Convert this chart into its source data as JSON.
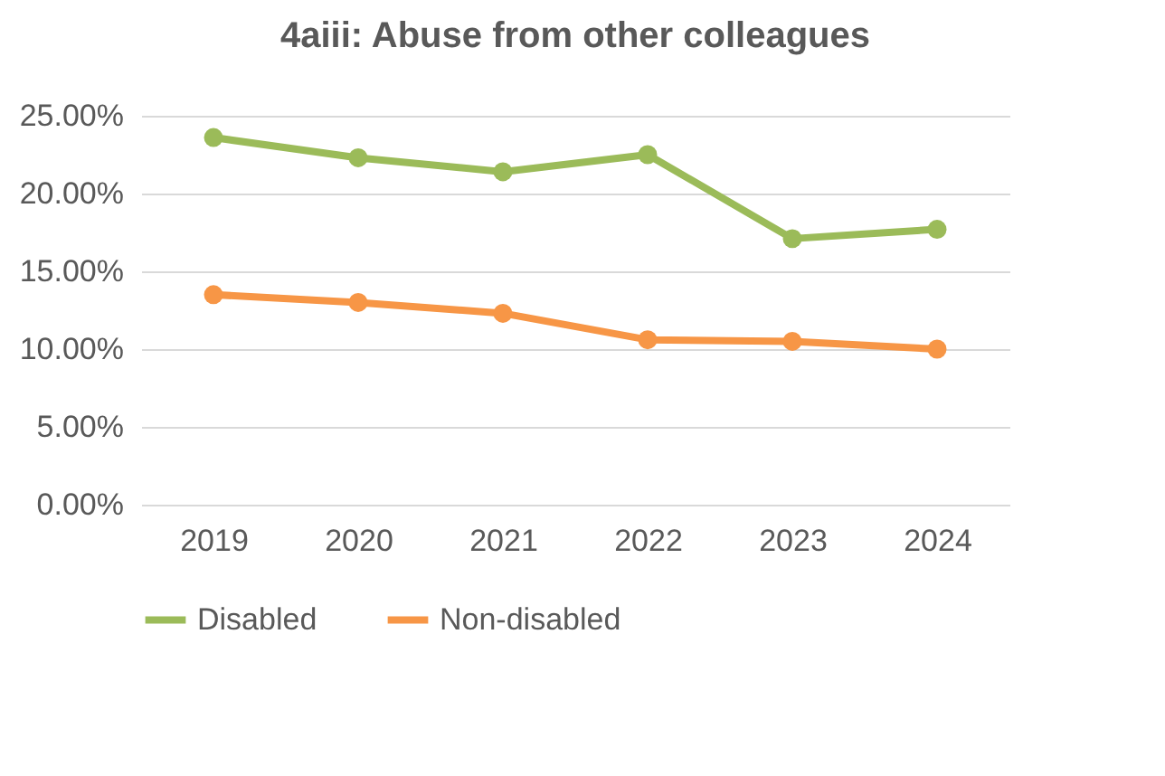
{
  "chart_data": {
    "type": "line",
    "title": "4aiii: Abuse from other colleagues",
    "categories": [
      "2019",
      "2020",
      "2021",
      "2022",
      "2023",
      "2024"
    ],
    "series": [
      {
        "name": "Disabled",
        "color": "#9bbb59",
        "values": [
          23.6,
          22.3,
          21.4,
          22.5,
          17.1,
          17.7
        ]
      },
      {
        "name": "Non-disabled",
        "color": "#f79646",
        "values": [
          13.5,
          13.0,
          12.3,
          10.6,
          10.5,
          10.0
        ]
      }
    ],
    "ylim": [
      0,
      25
    ],
    "yticks": [
      {
        "value": 0,
        "label": "0.00%"
      },
      {
        "value": 5,
        "label": "5.00%"
      },
      {
        "value": 10,
        "label": "10.00%"
      },
      {
        "value": 15,
        "label": "15.00%"
      },
      {
        "value": 20,
        "label": "20.00%"
      },
      {
        "value": 25,
        "label": "25.00%"
      }
    ],
    "grid": "y",
    "legend": "bottom",
    "marker": "circle",
    "line_style": "solid"
  }
}
